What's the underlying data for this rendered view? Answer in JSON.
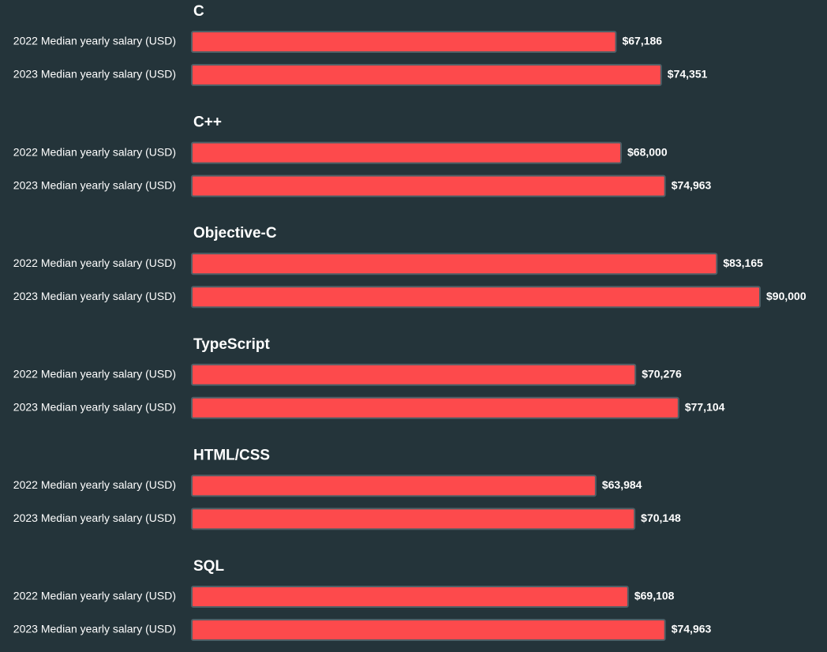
{
  "colors": {
    "background": "#24343a",
    "bar_fill": "#fd4a4c",
    "bar_stroke": "#4f5f66",
    "text": "#ffffff"
  },
  "chart_data": {
    "type": "bar",
    "orientation": "horizontal",
    "grid": false,
    "xlim": [
      0,
      90000
    ],
    "value_format": "$#,###",
    "row_labels": [
      "2022 Median yearly salary (USD)",
      "2023 Median yearly salary (USD)"
    ],
    "groups": [
      {
        "name": "C",
        "values": [
          67186,
          74351
        ],
        "data_labels": [
          "$67,186",
          "$74,351"
        ]
      },
      {
        "name": "C++",
        "values": [
          68000,
          74963
        ],
        "data_labels": [
          "$68,000",
          "$74,963"
        ]
      },
      {
        "name": "Objective-C",
        "values": [
          83165,
          90000
        ],
        "data_labels": [
          "$83,165",
          "$90,000"
        ]
      },
      {
        "name": "TypeScript",
        "values": [
          70276,
          77104
        ],
        "data_labels": [
          "$70,276",
          "$77,104"
        ]
      },
      {
        "name": "HTML/CSS",
        "values": [
          63984,
          70148
        ],
        "data_labels": [
          "$63,984",
          "$70,148"
        ]
      },
      {
        "name": "SQL",
        "values": [
          69108,
          74963
        ],
        "data_labels": [
          "$69,108",
          "$74,963"
        ]
      }
    ]
  }
}
